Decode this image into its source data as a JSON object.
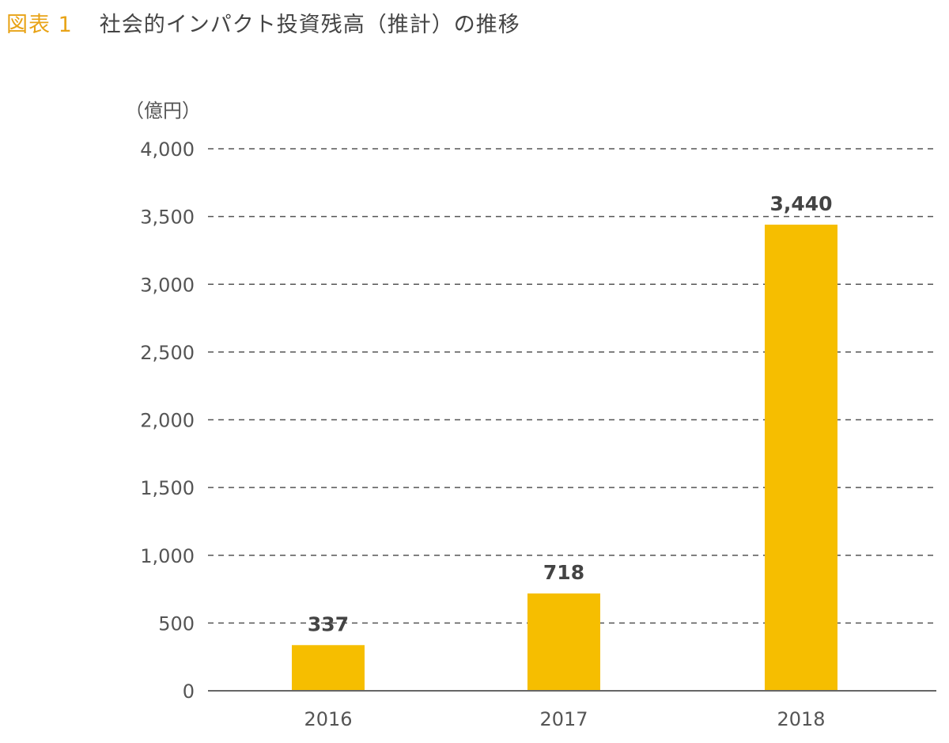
{
  "figure": {
    "number": "図表 1",
    "title": "社会的インパクト投資残高（推計）の推移"
  },
  "colors": {
    "bar": "#f6be00",
    "accent": "#e8a317",
    "grid": "#555555",
    "text": "#555555"
  },
  "chart_data": {
    "type": "bar",
    "title": "社会的インパクト投資残高（推計）の推移",
    "unit": "（億円）",
    "xlabel": "",
    "ylabel": "",
    "categories": [
      "2016",
      "2017",
      "2018"
    ],
    "values": [
      337,
      718,
      3440
    ],
    "data_labels": [
      "337",
      "718",
      "3,440"
    ],
    "ylim": [
      0,
      4000
    ],
    "yticks": [
      0,
      500,
      1000,
      1500,
      2000,
      2500,
      3000,
      3500,
      4000
    ],
    "ytick_labels": [
      "0",
      "500",
      "1,000",
      "1,500",
      "2,000",
      "2,500",
      "3,000",
      "3,500",
      "4,000"
    ],
    "grid": "horizontal dashed",
    "legend": "none"
  }
}
